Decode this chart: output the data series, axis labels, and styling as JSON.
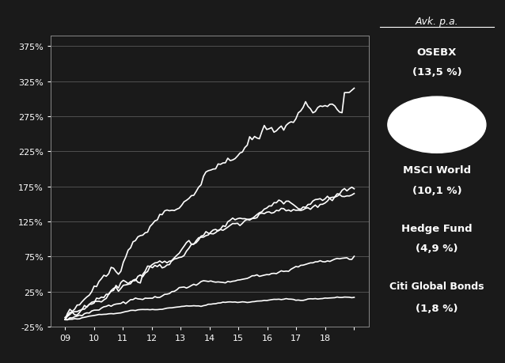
{
  "background_color": "#1a1a1a",
  "plot_bg_color": "#1a1a1a",
  "line_color": "#ffffff",
  "grid_color": "#666666",
  "text_color": "#ffffff",
  "title_text": "Avk. p.a.",
  "ylim": [
    -0.25,
    3.9
  ],
  "yticks": [
    -0.25,
    0.25,
    0.75,
    1.25,
    1.75,
    2.25,
    2.75,
    3.25,
    3.75
  ],
  "ytick_labels": [
    "-25%",
    "25%",
    "75%",
    "125%",
    "175%",
    "225%",
    "275%",
    "325%",
    "375%"
  ],
  "xtick_labels": [
    "09",
    "10",
    "11",
    "12",
    "13",
    "14",
    "15",
    "16",
    "17",
    "18",
    ""
  ],
  "n_points": 120
}
